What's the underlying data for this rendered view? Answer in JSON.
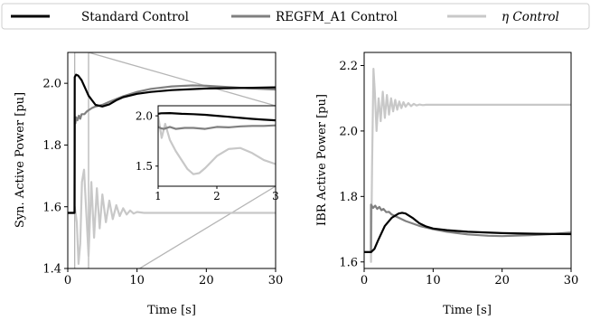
{
  "legend": {
    "entries": [
      {
        "label": "Standard Control",
        "color": "#000000"
      },
      {
        "label": "REGFM_A1 Control",
        "color": "#808080"
      },
      {
        "label": "η Control",
        "color": "#c8c8c8"
      }
    ]
  },
  "chart_data": [
    {
      "type": "line",
      "xlabel": "Time [s]",
      "ylabel": "Syn. Active Power [pu]",
      "xlim": [
        0,
        30
      ],
      "ylim": [
        1.4,
        2.1
      ],
      "xticks": [
        0,
        10,
        20,
        30
      ],
      "yticks": [
        1.4,
        1.6,
        1.8,
        2.0
      ],
      "grid": false,
      "series": [
        {
          "name": "Standard Control",
          "color": "#000000",
          "x": [
            0,
            0.98,
            1.0,
            1.2,
            1.5,
            2.0,
            2.5,
            3.0,
            3.5,
            4.0,
            5.0,
            6.0,
            7.0,
            8.0,
            10.0,
            12.0,
            15.0,
            20.0,
            25.0,
            30.0
          ],
          "y": [
            1.58,
            1.58,
            2.02,
            2.028,
            2.025,
            2.01,
            1.985,
            1.96,
            1.945,
            1.93,
            1.925,
            1.932,
            1.945,
            1.955,
            1.966,
            1.972,
            1.978,
            1.983,
            1.985,
            1.987
          ]
        },
        {
          "name": "REGFM_A1 Control",
          "color": "#808080",
          "x": [
            0,
            0.98,
            1.0,
            1.1,
            1.2,
            1.4,
            1.6,
            1.8,
            2.0,
            2.4,
            2.8,
            3.5,
            4.0,
            5.0,
            6.0,
            8.0,
            10.0,
            12.0,
            15.0,
            18.0,
            20.0,
            23.0,
            26.0,
            30.0
          ],
          "y": [
            1.58,
            1.58,
            1.89,
            1.87,
            1.89,
            1.88,
            1.895,
            1.885,
            1.9,
            1.9,
            1.91,
            1.92,
            1.925,
            1.93,
            1.94,
            1.958,
            1.972,
            1.982,
            1.99,
            1.993,
            1.992,
            1.988,
            1.984,
            1.98
          ]
        },
        {
          "name": "η Control",
          "color": "#c8c8c8",
          "x": [
            0,
            0.98,
            1.0,
            1.3,
            1.55,
            1.8,
            2.05,
            2.35,
            2.7,
            3.0,
            3.4,
            3.8,
            4.2,
            4.6,
            5.0,
            5.5,
            6.0,
            6.5,
            7.0,
            7.5,
            8.0,
            8.5,
            9.0,
            9.5,
            10.0,
            11.0,
            12.0,
            20.0,
            30.0
          ],
          "y": [
            1.58,
            1.58,
            1.6,
            1.55,
            1.415,
            1.48,
            1.68,
            1.72,
            1.57,
            1.44,
            1.68,
            1.5,
            1.66,
            1.53,
            1.64,
            1.55,
            1.62,
            1.56,
            1.605,
            1.57,
            1.595,
            1.575,
            1.588,
            1.578,
            1.583,
            1.58,
            1.58,
            1.58,
            1.58
          ]
        }
      ]
    },
    {
      "type": "line",
      "xlim": [
        1,
        3
      ],
      "ylim": [
        1.3,
        2.1
      ],
      "xticks": [
        1,
        2,
        3
      ],
      "yticks": [
        1.5,
        2.0
      ],
      "grid": false,
      "series": [
        {
          "name": "Standard Control",
          "color": "#000000",
          "x": [
            1.0,
            1.05,
            1.2,
            1.4,
            1.6,
            1.8,
            2.0,
            2.2,
            2.4,
            2.6,
            2.8,
            3.0
          ],
          "y": [
            2.02,
            2.025,
            2.027,
            2.02,
            2.016,
            2.01,
            2.0,
            1.99,
            1.98,
            1.97,
            1.962,
            1.955
          ]
        },
        {
          "name": "REGFM_A1 Control",
          "color": "#808080",
          "x": [
            1.0,
            1.05,
            1.1,
            1.2,
            1.3,
            1.45,
            1.6,
            1.8,
            2.0,
            2.2,
            2.4,
            2.6,
            2.8,
            3.0
          ],
          "y": [
            1.89,
            1.875,
            1.87,
            1.89,
            1.87,
            1.88,
            1.88,
            1.87,
            1.89,
            1.885,
            1.895,
            1.9,
            1.9,
            1.905
          ]
        },
        {
          "name": "η Control",
          "color": "#c8c8c8",
          "x": [
            0.97,
            0.98,
            1.0,
            1.06,
            1.12,
            1.2,
            1.3,
            1.4,
            1.5,
            1.6,
            1.7,
            1.8,
            2.0,
            2.2,
            2.4,
            2.6,
            2.8,
            3.0
          ],
          "y": [
            1.58,
            1.58,
            2.0,
            1.78,
            1.92,
            1.76,
            1.65,
            1.56,
            1.47,
            1.42,
            1.43,
            1.48,
            1.6,
            1.67,
            1.68,
            1.63,
            1.56,
            1.52
          ]
        }
      ]
    },
    {
      "type": "line",
      "xlabel": "Time [s]",
      "ylabel": "IBR Active Power [pu]",
      "xlim": [
        0,
        30
      ],
      "ylim": [
        1.58,
        2.24
      ],
      "xticks": [
        0,
        10,
        20,
        30
      ],
      "yticks": [
        1.6,
        1.8,
        2.0,
        2.2
      ],
      "grid": false,
      "series": [
        {
          "name": "Standard Control",
          "color": "#000000",
          "x": [
            0,
            0.98,
            1.0,
            1.5,
            2.0,
            3.0,
            4.0,
            5.0,
            5.5,
            6.0,
            7.0,
            8.0,
            9.0,
            10.0,
            12.0,
            15.0,
            20.0,
            25.0,
            30.0
          ],
          "y": [
            1.63,
            1.63,
            1.63,
            1.64,
            1.665,
            1.71,
            1.735,
            1.748,
            1.75,
            1.748,
            1.735,
            1.718,
            1.708,
            1.702,
            1.697,
            1.692,
            1.688,
            1.686,
            1.685
          ]
        },
        {
          "name": "REGFM_A1 Control",
          "color": "#808080",
          "x": [
            0,
            0.98,
            1.0,
            1.3,
            1.6,
            1.9,
            2.2,
            2.5,
            2.8,
            3.2,
            3.6,
            4.0,
            5.0,
            6.0,
            8.0,
            10.0,
            12.0,
            15.0,
            18.0,
            20.0,
            24.0,
            27.0,
            30.0
          ],
          "y": [
            1.63,
            1.63,
            1.775,
            1.765,
            1.772,
            1.762,
            1.768,
            1.758,
            1.762,
            1.752,
            1.753,
            1.745,
            1.735,
            1.725,
            1.71,
            1.7,
            1.692,
            1.684,
            1.68,
            1.679,
            1.682,
            1.685,
            1.69
          ]
        },
        {
          "name": "η Control",
          "color": "#c8c8c8",
          "x": [
            0,
            0.98,
            1.0,
            1.15,
            1.35,
            1.55,
            1.8,
            2.1,
            2.4,
            2.7,
            3.0,
            3.3,
            3.6,
            3.9,
            4.2,
            4.5,
            4.8,
            5.1,
            5.4,
            5.7,
            6.0,
            6.4,
            6.8,
            7.2,
            7.6,
            8.0,
            8.5,
            9.0,
            10.0,
            12.0,
            20.0,
            30.0
          ],
          "y": [
            1.63,
            1.63,
            1.6,
            1.9,
            2.19,
            2.12,
            2.0,
            2.1,
            2.03,
            2.12,
            2.04,
            2.11,
            2.05,
            2.1,
            2.06,
            2.095,
            2.065,
            2.09,
            2.07,
            2.088,
            2.074,
            2.085,
            2.076,
            2.083,
            2.078,
            2.081,
            2.079,
            2.08,
            2.08,
            2.08,
            2.08,
            2.08
          ]
        }
      ]
    }
  ]
}
